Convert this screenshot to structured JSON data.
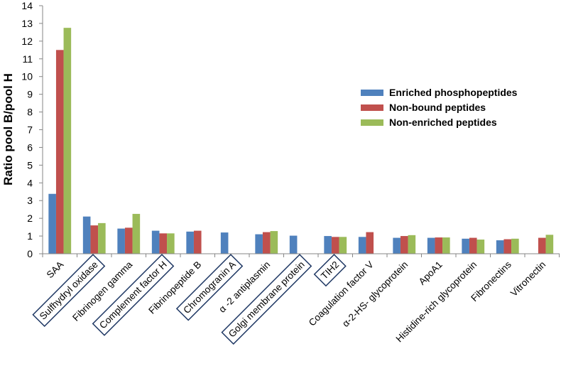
{
  "chart_data": {
    "type": "bar",
    "title": "",
    "xlabel": "",
    "ylabel": "Ratio pool B/pool H",
    "ylim": [
      0,
      14
    ],
    "yticks": [
      0,
      1,
      2,
      3,
      4,
      5,
      6,
      7,
      8,
      9,
      10,
      11,
      12,
      13,
      14
    ],
    "grid": false,
    "legend_position": "right",
    "categories": [
      "SAA",
      "Sulfhydryl  oxidase",
      "Fibrinogen gamma",
      "Complement factor H",
      "Fibrinopeptide B",
      "Chromogranin A",
      "α -2 antiplasmin",
      "Golgi membrane protein",
      "TIH2",
      "Coagulation factor V",
      "α-2-HS- glycoprotein",
      "ApoA1",
      "Histidine-rich glycoprotein",
      "Fibronectins",
      "Vitronectin"
    ],
    "boxed_categories": [
      "Sulfhydryl  oxidase",
      "Complement factor H",
      "Chromogranin A",
      "Golgi membrane protein",
      "TIH2"
    ],
    "series": [
      {
        "name": "Enriched phosphopeptides",
        "color": "#4F81BD",
        "values": [
          3.38,
          2.1,
          1.42,
          1.3,
          1.25,
          1.2,
          1.1,
          1.02,
          1.0,
          0.95,
          0.9,
          0.9,
          0.85,
          0.76,
          null
        ]
      },
      {
        "name": "Non-bound peptides",
        "color": "#C0504D",
        "values": [
          11.5,
          1.6,
          1.47,
          1.15,
          1.3,
          null,
          1.22,
          null,
          0.95,
          1.22,
          1.0,
          0.92,
          0.9,
          0.82,
          0.9
        ]
      },
      {
        "name": "Non-enriched peptides",
        "color": "#9BBB59",
        "values": [
          12.75,
          1.73,
          2.25,
          1.15,
          null,
          null,
          1.28,
          null,
          0.95,
          null,
          1.05,
          0.92,
          0.8,
          0.85,
          1.07
        ]
      }
    ]
  }
}
